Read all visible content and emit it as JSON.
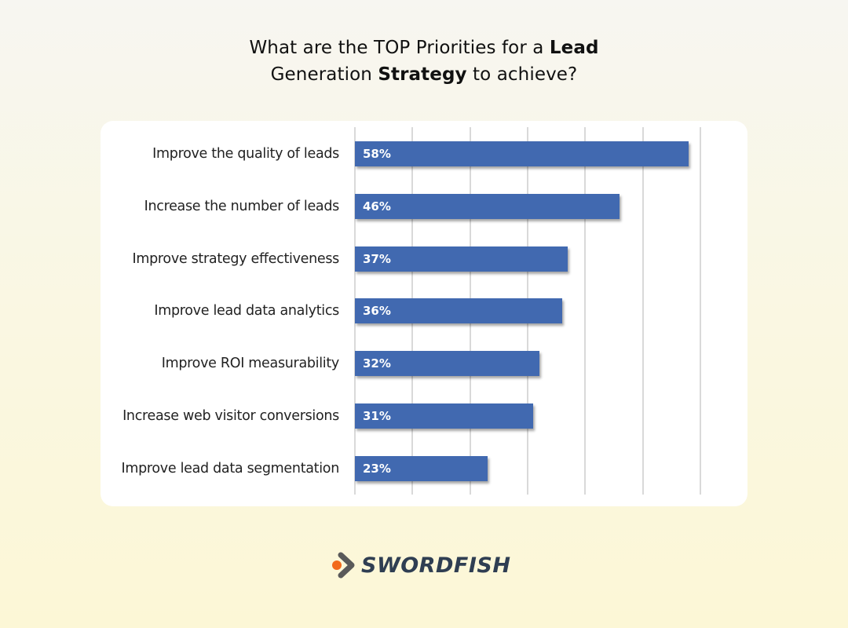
{
  "title": {
    "line1_plain": "What are the TOP Priorities for a ",
    "line1_bold": "Lead",
    "line2_plain_start": "Generation ",
    "line2_bold": "Strategy",
    "line2_plain_end": " to achieve?"
  },
  "brand": {
    "name": "SWORDFISH",
    "icon": "swordfish-chevron-logo-icon",
    "dot_color": "#f26a1b",
    "chevron_color": "#5a5a5a",
    "text_color": "#2f3e52"
  },
  "colors": {
    "bar": "#4169b0",
    "gridline": "#d9d9d9",
    "card": "#ffffff"
  },
  "chart_data": {
    "type": "bar",
    "orientation": "horizontal",
    "title": "What are the TOP Priorities for a Lead Generation Strategy to achieve?",
    "categories": [
      "Improve the quality of leads",
      "Increase the number of leads",
      "Improve strategy effectiveness",
      "Improve lead data analytics",
      "Improve ROI measurability",
      "Increase web visitor conversions",
      "Improve lead data segmentation"
    ],
    "values": [
      58,
      46,
      37,
      36,
      32,
      31,
      23
    ],
    "value_labels": [
      "58%",
      "46%",
      "37%",
      "36%",
      "32%",
      "31%",
      "23%"
    ],
    "unit": "%",
    "xlabel": "",
    "ylabel": "",
    "xlim": [
      0,
      60
    ],
    "grid": true,
    "grid_step": 10,
    "tick_labels_visible": false,
    "legend": "none",
    "data_labels": "inside-start"
  }
}
